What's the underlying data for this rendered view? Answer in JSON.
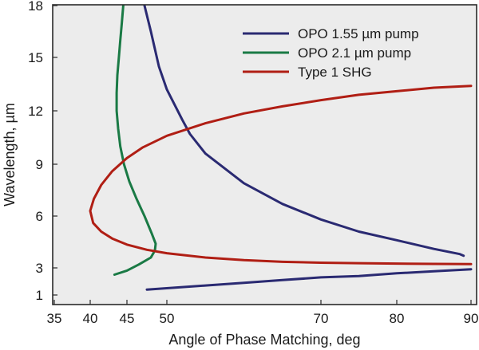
{
  "chart_data": {
    "type": "line",
    "title": "",
    "xlabel": "Angle of Phase Matching, deg",
    "ylabel": "Wavelength, µm",
    "x_ticks": [
      "35",
      "40",
      "45",
      "50",
      "70",
      "80",
      "90"
    ],
    "y_ticks": [
      "1",
      "3",
      "6",
      "9",
      "12",
      "15",
      "18"
    ],
    "grid": false,
    "legend_position": "top-right",
    "plot_background": "#ececec",
    "series": [
      {
        "name": "OPO 1.55 µm pump",
        "color": "#2a2a72",
        "points": [
          [
            47.2,
            18.0
          ],
          [
            48.0,
            16.5
          ],
          [
            49.0,
            14.5
          ],
          [
            50.0,
            13.2
          ],
          [
            52.0,
            11.5
          ],
          [
            53.0,
            10.7
          ],
          [
            55.0,
            9.6
          ],
          [
            60.0,
            7.9
          ],
          [
            65.0,
            6.7
          ],
          [
            70.0,
            5.8
          ],
          [
            75.0,
            5.1
          ],
          [
            80.0,
            4.6
          ],
          [
            85.0,
            4.1
          ],
          [
            88.5,
            3.8
          ],
          [
            89.0,
            3.7
          ],
          [
            null,
            null
          ],
          [
            47.5,
            1.4
          ],
          [
            55.0,
            1.7
          ],
          [
            60.0,
            1.9
          ],
          [
            65.0,
            2.1
          ],
          [
            70.0,
            2.3
          ],
          [
            75.0,
            2.4
          ],
          [
            80.0,
            2.6
          ],
          [
            85.0,
            2.75
          ],
          [
            90.0,
            2.9
          ]
        ]
      },
      {
        "name": "OPO 2.1 µm pump",
        "color": "#1a7a45",
        "points": [
          [
            44.5,
            18.0
          ],
          [
            44.3,
            17.0
          ],
          [
            44.1,
            16.0
          ],
          [
            43.9,
            15.0
          ],
          [
            43.7,
            14.0
          ],
          [
            43.6,
            13.0
          ],
          [
            43.6,
            12.0
          ],
          [
            43.8,
            11.0
          ],
          [
            44.1,
            10.0
          ],
          [
            44.6,
            9.0
          ],
          [
            45.3,
            8.0
          ],
          [
            46.2,
            7.0
          ],
          [
            47.2,
            6.0
          ],
          [
            48.1,
            5.0
          ],
          [
            48.6,
            4.4
          ],
          [
            48.5,
            4.0
          ],
          [
            48.0,
            3.6
          ],
          [
            46.5,
            3.2
          ],
          [
            45.0,
            2.8
          ],
          [
            43.3,
            2.5
          ]
        ]
      },
      {
        "name": "Type 1 SHG",
        "color": "#b01e14",
        "points": [
          [
            90.0,
            13.4
          ],
          [
            85.0,
            13.3
          ],
          [
            80.0,
            13.1
          ],
          [
            75.0,
            12.9
          ],
          [
            70.0,
            12.6
          ],
          [
            65.0,
            12.25
          ],
          [
            60.0,
            11.85
          ],
          [
            55.0,
            11.3
          ],
          [
            50.0,
            10.6
          ],
          [
            47.0,
            9.95
          ],
          [
            45.0,
            9.35
          ],
          [
            43.0,
            8.6
          ],
          [
            41.5,
            7.8
          ],
          [
            40.5,
            7.0
          ],
          [
            40.0,
            6.3
          ],
          [
            40.4,
            5.6
          ],
          [
            41.5,
            5.1
          ],
          [
            43.0,
            4.7
          ],
          [
            45.0,
            4.35
          ],
          [
            47.5,
            4.05
          ],
          [
            50.0,
            3.85
          ],
          [
            55.0,
            3.6
          ],
          [
            60.0,
            3.45
          ],
          [
            65.0,
            3.35
          ],
          [
            70.0,
            3.3
          ],
          [
            75.0,
            3.27
          ],
          [
            80.0,
            3.25
          ],
          [
            85.0,
            3.23
          ],
          [
            90.0,
            3.22
          ]
        ]
      }
    ]
  }
}
